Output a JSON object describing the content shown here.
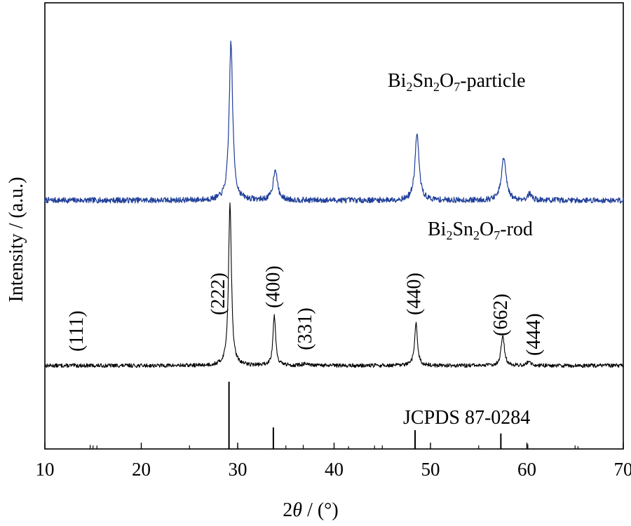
{
  "chart_data": {
    "type": "line",
    "xlabel": "2θ / (°)",
    "ylabel": "Intensity / (a.u.)",
    "xlim": [
      10,
      70
    ],
    "x_ticks": [
      10,
      20,
      30,
      40,
      50,
      60,
      70
    ],
    "x_tick_labels": [
      "10",
      "20",
      "30",
      "40",
      "50",
      "60",
      "70"
    ],
    "grid": false,
    "series": [
      {
        "name": "Bi₂Sn₂O₇-particle",
        "color": "#1f3f99",
        "baseline": 0,
        "noise": 0.018,
        "peaks": [
          {
            "x": 29.3,
            "height": 1.0,
            "width": 0.22
          },
          {
            "x": 33.9,
            "height": 0.2,
            "width": 0.25
          },
          {
            "x": 48.6,
            "height": 0.42,
            "width": 0.25
          },
          {
            "x": 57.6,
            "height": 0.27,
            "width": 0.28
          },
          {
            "x": 60.3,
            "height": 0.04,
            "width": 0.25
          }
        ]
      },
      {
        "name": "Bi₂Sn₂O₇-rod",
        "color": "#000000",
        "baseline": 0,
        "noise": 0.012,
        "peaks": [
          {
            "x": 29.2,
            "height": 1.0,
            "width": 0.18
          },
          {
            "x": 33.8,
            "height": 0.31,
            "width": 0.17
          },
          {
            "x": 36.9,
            "height": 0.01,
            "width": 0.3
          },
          {
            "x": 48.5,
            "height": 0.26,
            "width": 0.18
          },
          {
            "x": 57.5,
            "height": 0.19,
            "width": 0.2
          },
          {
            "x": 60.2,
            "height": 0.03,
            "width": 0.2
          }
        ]
      }
    ],
    "peak_labels": [
      {
        "x": 13.2,
        "text": "(111)"
      },
      {
        "x": 27.9,
        "text": "(222)"
      },
      {
        "x": 33.6,
        "text": "(400)"
      },
      {
        "x": 36.9,
        "text": "(331)"
      },
      {
        "x": 48.2,
        "text": "(440)"
      },
      {
        "x": 57.2,
        "text": "(662)"
      },
      {
        "x": 60.6,
        "text": "(444)"
      }
    ],
    "reference": {
      "label": "JCPDS 87-0284",
      "lines": [
        {
          "x": 14.7,
          "intensity": 0.06
        },
        {
          "x": 15.4,
          "intensity": 0.05
        },
        {
          "x": 29.1,
          "intensity": 1.0
        },
        {
          "x": 30.0,
          "intensity": 0.05
        },
        {
          "x": 33.7,
          "intensity": 0.32
        },
        {
          "x": 36.8,
          "intensity": 0.06
        },
        {
          "x": 41.5,
          "intensity": 0.04
        },
        {
          "x": 44.2,
          "intensity": 0.05
        },
        {
          "x": 48.4,
          "intensity": 0.28
        },
        {
          "x": 57.3,
          "intensity": 0.23
        },
        {
          "x": 60.1,
          "intensity": 0.07
        },
        {
          "x": 65.3,
          "intensity": 0.04
        }
      ]
    }
  }
}
